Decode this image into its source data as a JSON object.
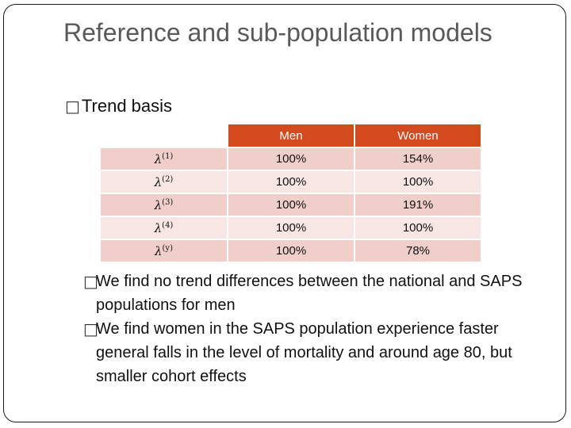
{
  "slide": {
    "title": "Reference and sub-population models",
    "bullet_glyph": "□",
    "trend_label": "Trend basis",
    "table": {
      "headers": [
        "",
        "Men",
        "Women"
      ],
      "rows": [
        {
          "param": "λ",
          "sup": "(1)",
          "men": "100%",
          "women": "154%"
        },
        {
          "param": "λ",
          "sup": "(2)",
          "men": "100%",
          "women": "100%"
        },
        {
          "param": "λ",
          "sup": "(3)",
          "men": "100%",
          "women": "191%"
        },
        {
          "param": "λ",
          "sup": "(4)",
          "men": "100%",
          "women": "100%"
        },
        {
          "param": "λ",
          "sup": "(y)",
          "men": "100%",
          "women": "78%"
        }
      ]
    },
    "bullets": [
      "We find no trend differences between the national and SAPS populations for men",
      "We find women in the SAPS population experience faster general falls in the level of mortality and around age 80, but smaller cohort effects"
    ],
    "colors": {
      "header_bg": "#d24a1d",
      "row_odd": "#f0cfcb",
      "row_even": "#f7e6e4",
      "title_text": "#595959"
    }
  }
}
